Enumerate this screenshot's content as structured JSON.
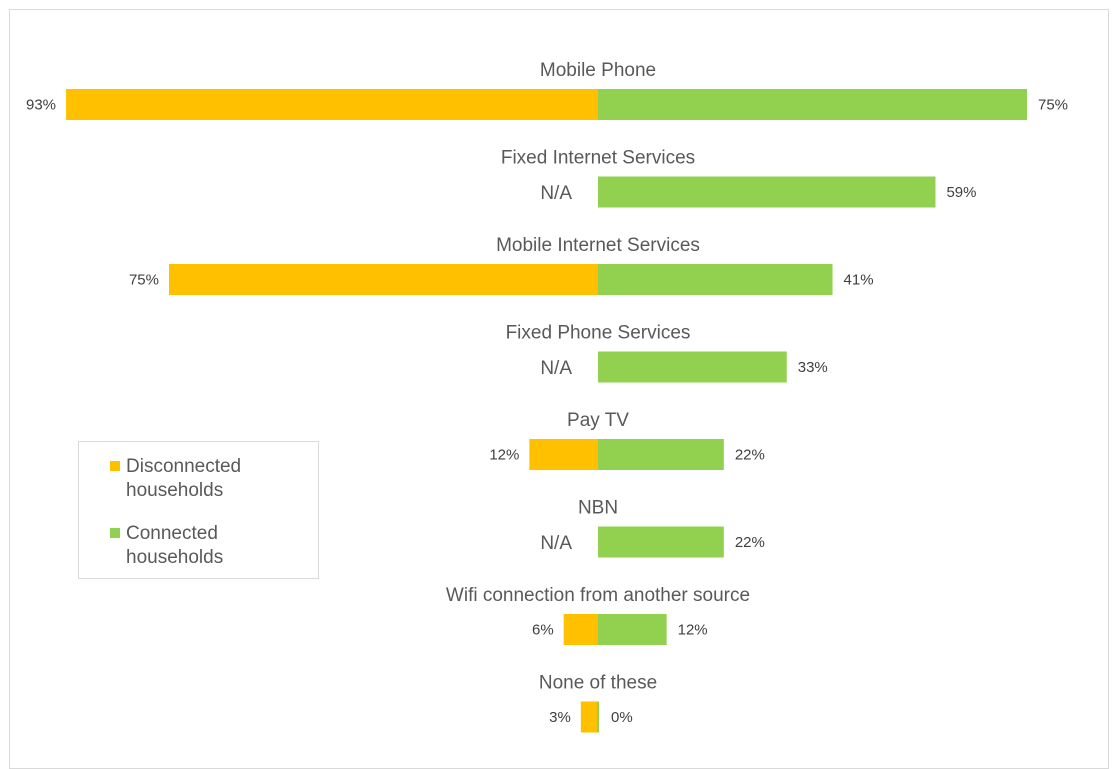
{
  "chart_data": {
    "type": "bar",
    "orientation": "horizontal-diverging",
    "categories": [
      "Mobile Phone",
      "Fixed Internet Services",
      "Mobile Internet Services",
      "Fixed Phone Services",
      "Pay TV",
      "NBN",
      "Wifi connection from another source",
      "None of these"
    ],
    "series": [
      {
        "name": "Disconnected households",
        "color": "#ffc000",
        "values": [
          93,
          null,
          75,
          null,
          12,
          null,
          6,
          3
        ],
        "labels": [
          "93%",
          "N/A",
          "75%",
          "N/A",
          "12%",
          "N/A",
          "6%",
          "3%"
        ]
      },
      {
        "name": "Connected households",
        "color": "#92d050",
        "values": [
          75,
          59,
          41,
          33,
          22,
          22,
          12,
          0
        ],
        "labels": [
          "75%",
          "59%",
          "41%",
          "33%",
          "22%",
          "22%",
          "12%",
          "0%"
        ]
      }
    ],
    "legend": {
      "position": "left",
      "entries": [
        {
          "line1": "Disconnected",
          "line2": "households",
          "color": "#ffc000"
        },
        {
          "line1": "Connected",
          "line2": "households",
          "color": "#92d050"
        }
      ]
    },
    "grid": false
  }
}
